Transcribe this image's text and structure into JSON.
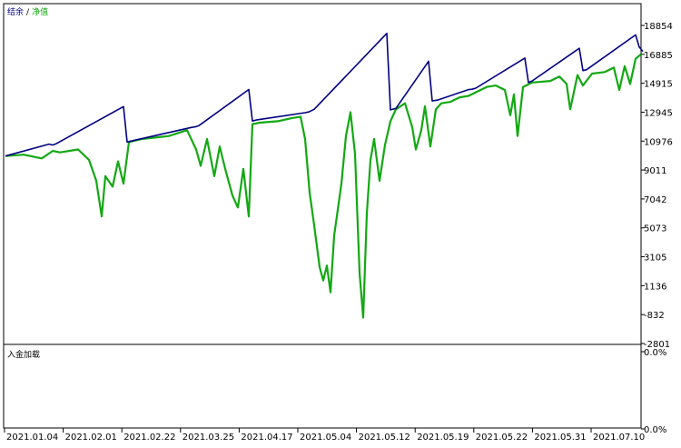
{
  "chart_data": [
    {
      "type": "line",
      "series": [
        {
          "name": "结余",
          "color": "#000080",
          "x": [
            0,
            48,
            52,
            56,
            130,
            134,
            138,
            205,
            209,
            213,
            268,
            272,
            276,
            330,
            334,
            340,
            420,
            424,
            430,
            466,
            470,
            476,
            510,
            514,
            518,
            572,
            576,
            580,
            632,
            636,
            640,
            694,
            698,
            702
          ],
          "y": [
            9860,
            10660,
            10600,
            10690,
            13180,
            10800,
            10860,
            11780,
            11820,
            11900,
            14330,
            12210,
            12280,
            12770,
            12820,
            13000,
            18100,
            12960,
            13060,
            16230,
            13560,
            13620,
            14320,
            14350,
            14420,
            16440,
            14800,
            14900,
            17100,
            15600,
            15660,
            18000,
            17180,
            16890
          ]
        },
        {
          "name": "净值",
          "color": "#13a813",
          "x": [
            0,
            20,
            40,
            52,
            60,
            80,
            92,
            100,
            106,
            110,
            118,
            124,
            130,
            136,
            150,
            180,
            200,
            210,
            215,
            222,
            230,
            236,
            242,
            250,
            256,
            262,
            268,
            272,
            280,
            300,
            315,
            325,
            330,
            335,
            340,
            346,
            350,
            354,
            358,
            362,
            370,
            375,
            380,
            385,
            390,
            394,
            398,
            402,
            406,
            412,
            418,
            424,
            430,
            440,
            448,
            452,
            458,
            462,
            468,
            474,
            480,
            490,
            500,
            510,
            520,
            530,
            540,
            550,
            556,
            560,
            564,
            570,
            580,
            600,
            610,
            618,
            622,
            630,
            636,
            646,
            660,
            670,
            676,
            682,
            688,
            694,
            700
          ],
          "y": [
            9860,
            9950,
            9700,
            10200,
            10100,
            10300,
            9600,
            8200,
            5800,
            8500,
            7800,
            9500,
            8000,
            10800,
            11000,
            11200,
            11600,
            10300,
            9200,
            11000,
            8500,
            10500,
            9000,
            7200,
            6400,
            9000,
            5800,
            12000,
            12100,
            12200,
            12400,
            12500,
            11000,
            7400,
            5200,
            2400,
            1500,
            2500,
            700,
            4500,
            8000,
            11200,
            12800,
            10000,
            2000,
            -1000,
            6000,
            9600,
            11000,
            8200,
            10600,
            12200,
            13000,
            13400,
            11800,
            10300,
            11600,
            13200,
            10500,
            13000,
            13400,
            13500,
            13800,
            13900,
            14200,
            14500,
            14600,
            14300,
            12600,
            14000,
            11200,
            14500,
            14800,
            14900,
            15200,
            14700,
            13000,
            15300,
            14600,
            15400,
            15500,
            15800,
            14300,
            15900,
            14700,
            16400,
            16700
          ]
        }
      ],
      "title": "",
      "xlabel": "",
      "ylabel": "",
      "ylim": [
        -2801,
        20100
      ],
      "grid": false,
      "legend": "top-left",
      "yticks": [
        "18854",
        "16885",
        "14915",
        "12945",
        "10976",
        "9011",
        "7042",
        "5073",
        "3105",
        "1136",
        "-832",
        "-2801"
      ]
    },
    {
      "type": "line",
      "title": "入金加载",
      "series": [],
      "ylim": [
        0,
        100
      ],
      "yticks": [
        "0.0%",
        "0.0%"
      ]
    }
  ],
  "x_axis": {
    "tick_labels": [
      "2021.01.04",
      "2021.02.01",
      "2021.02.22",
      "2021.03.25",
      "2021.04.17",
      "2021.05.04",
      "2021.05.12",
      "2021.05.19",
      "2021.05.22",
      "2021.05.31",
      "2021.07.10"
    ]
  }
}
